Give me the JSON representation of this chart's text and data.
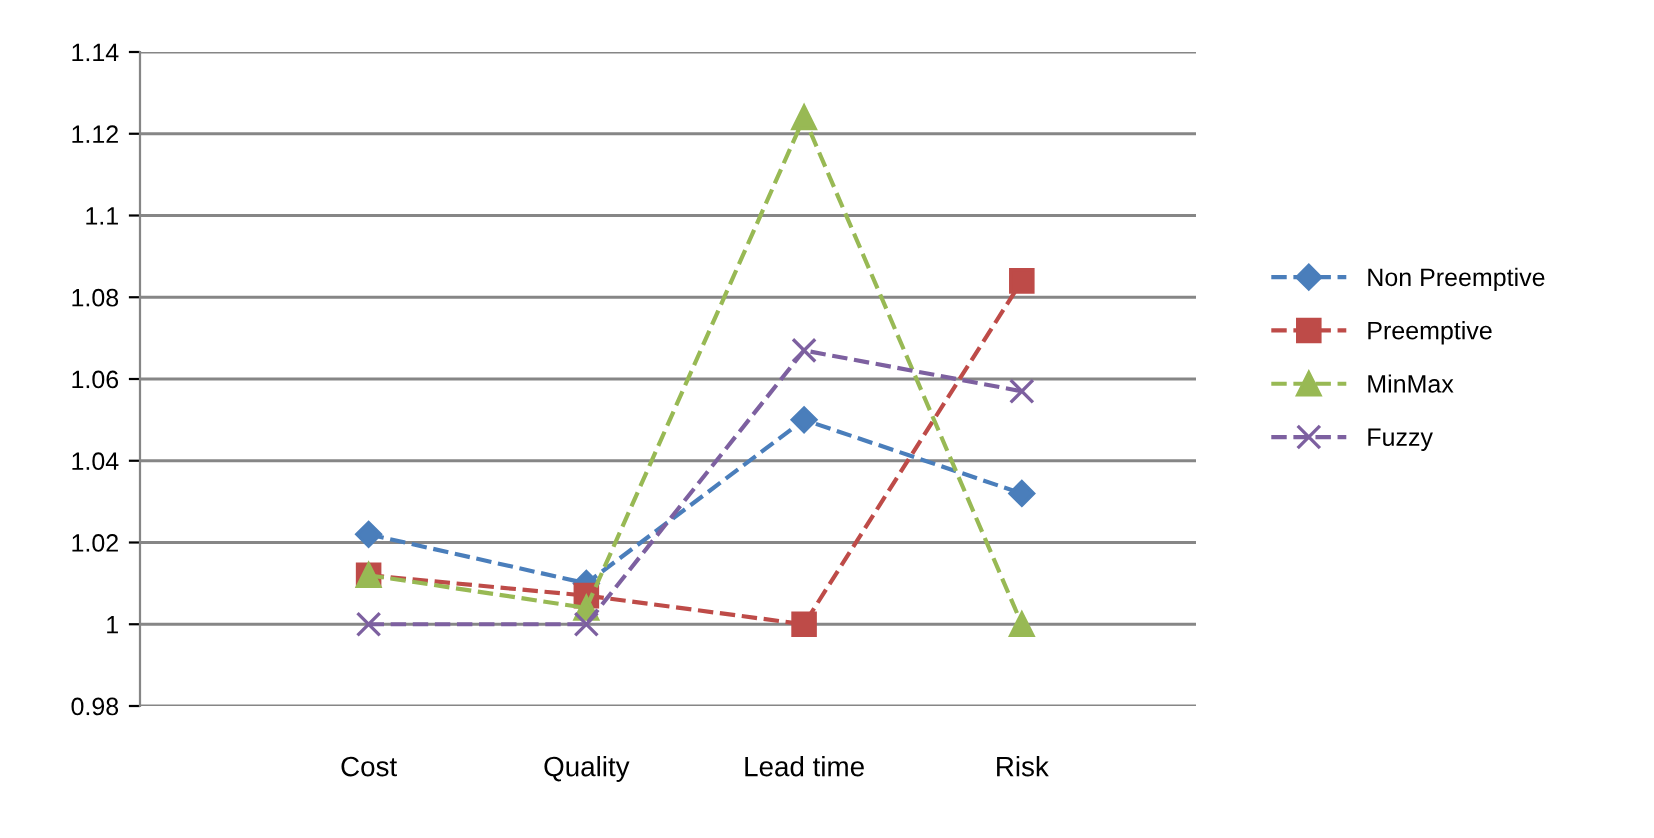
{
  "chart_data": {
    "type": "line",
    "categories": [
      "Cost",
      "Quality",
      "Lead time",
      "Risk"
    ],
    "series": [
      {
        "name": "Non Preemptive",
        "color": "#4a7ebb",
        "marker": "diamond",
        "values": [
          1.022,
          1.01,
          1.05,
          1.032
        ]
      },
      {
        "name": "Preemptive",
        "color": "#be4b48",
        "marker": "square",
        "values": [
          1.012,
          1.007,
          1.0,
          1.084
        ]
      },
      {
        "name": "MinMax",
        "color": "#98b954",
        "marker": "triangle",
        "values": [
          1.012,
          1.004,
          1.124,
          1.0
        ]
      },
      {
        "name": "Fuzzy",
        "color": "#7d60a0",
        "marker": "cross",
        "values": [
          1.0,
          1.0,
          1.067,
          1.057
        ]
      }
    ],
    "ylim": [
      0.98,
      1.14
    ],
    "yticks": [
      {
        "value": 0.98,
        "label": "0.98"
      },
      {
        "value": 1.0,
        "label": "1"
      },
      {
        "value": 1.02,
        "label": "1.02"
      },
      {
        "value": 1.04,
        "label": "1.04"
      },
      {
        "value": 1.06,
        "label": "1.06"
      },
      {
        "value": 1.08,
        "label": "1.08"
      },
      {
        "value": 1.1,
        "label": "1.1"
      },
      {
        "value": 1.12,
        "label": "1.12"
      },
      {
        "value": 1.14,
        "label": "1.14"
      }
    ],
    "grid": "y",
    "legend": "right",
    "line_style": "dashed"
  }
}
